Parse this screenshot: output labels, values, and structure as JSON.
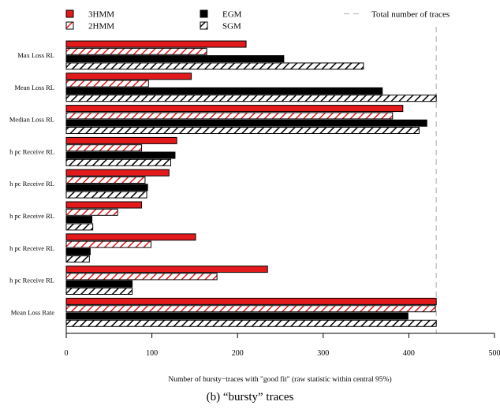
{
  "chart_data": {
    "type": "bar",
    "orientation": "horizontal",
    "categories": [
      "Max Loss RL",
      "Mean Loss RL",
      "Median Loss RL",
      "h pc Receive RL",
      "h pc Receive RL",
      "h pc Receive RL",
      "h pc Receive RL",
      "h pc Receive RL",
      "Mean Loss Rate"
    ],
    "series": [
      {
        "name": "3HMM",
        "values": [
          210,
          146,
          393,
          129,
          120,
          88,
          151,
          235,
          432
        ],
        "fill": "#e31a1c",
        "pattern": "solid"
      },
      {
        "name": "2HMM",
        "values": [
          164,
          96,
          381,
          88,
          92,
          60,
          99,
          176,
          431
        ],
        "fill": "#e31a1c",
        "pattern": "hatch"
      },
      {
        "name": "EGM",
        "values": [
          254,
          369,
          421,
          127,
          95,
          30,
          28,
          77,
          399
        ],
        "fill": "#000000",
        "pattern": "solid"
      },
      {
        "name": "SGM",
        "values": [
          347,
          432,
          412,
          122,
          94,
          31,
          27,
          77,
          432
        ],
        "fill": "#000000",
        "pattern": "hatch"
      }
    ],
    "reference_line": {
      "name": "Total number of traces",
      "value": 432,
      "color": "#bbbbbb"
    },
    "xlim": [
      0,
      500
    ],
    "xticks": [
      0,
      100,
      200,
      300,
      400,
      500
    ],
    "xlabel": "Number of bursty−traces with \"good fit\" (raw statistic within central 95%)",
    "ylabel": "",
    "legend_position": "top",
    "grid": false
  },
  "caption": "(b) “bursty” traces"
}
